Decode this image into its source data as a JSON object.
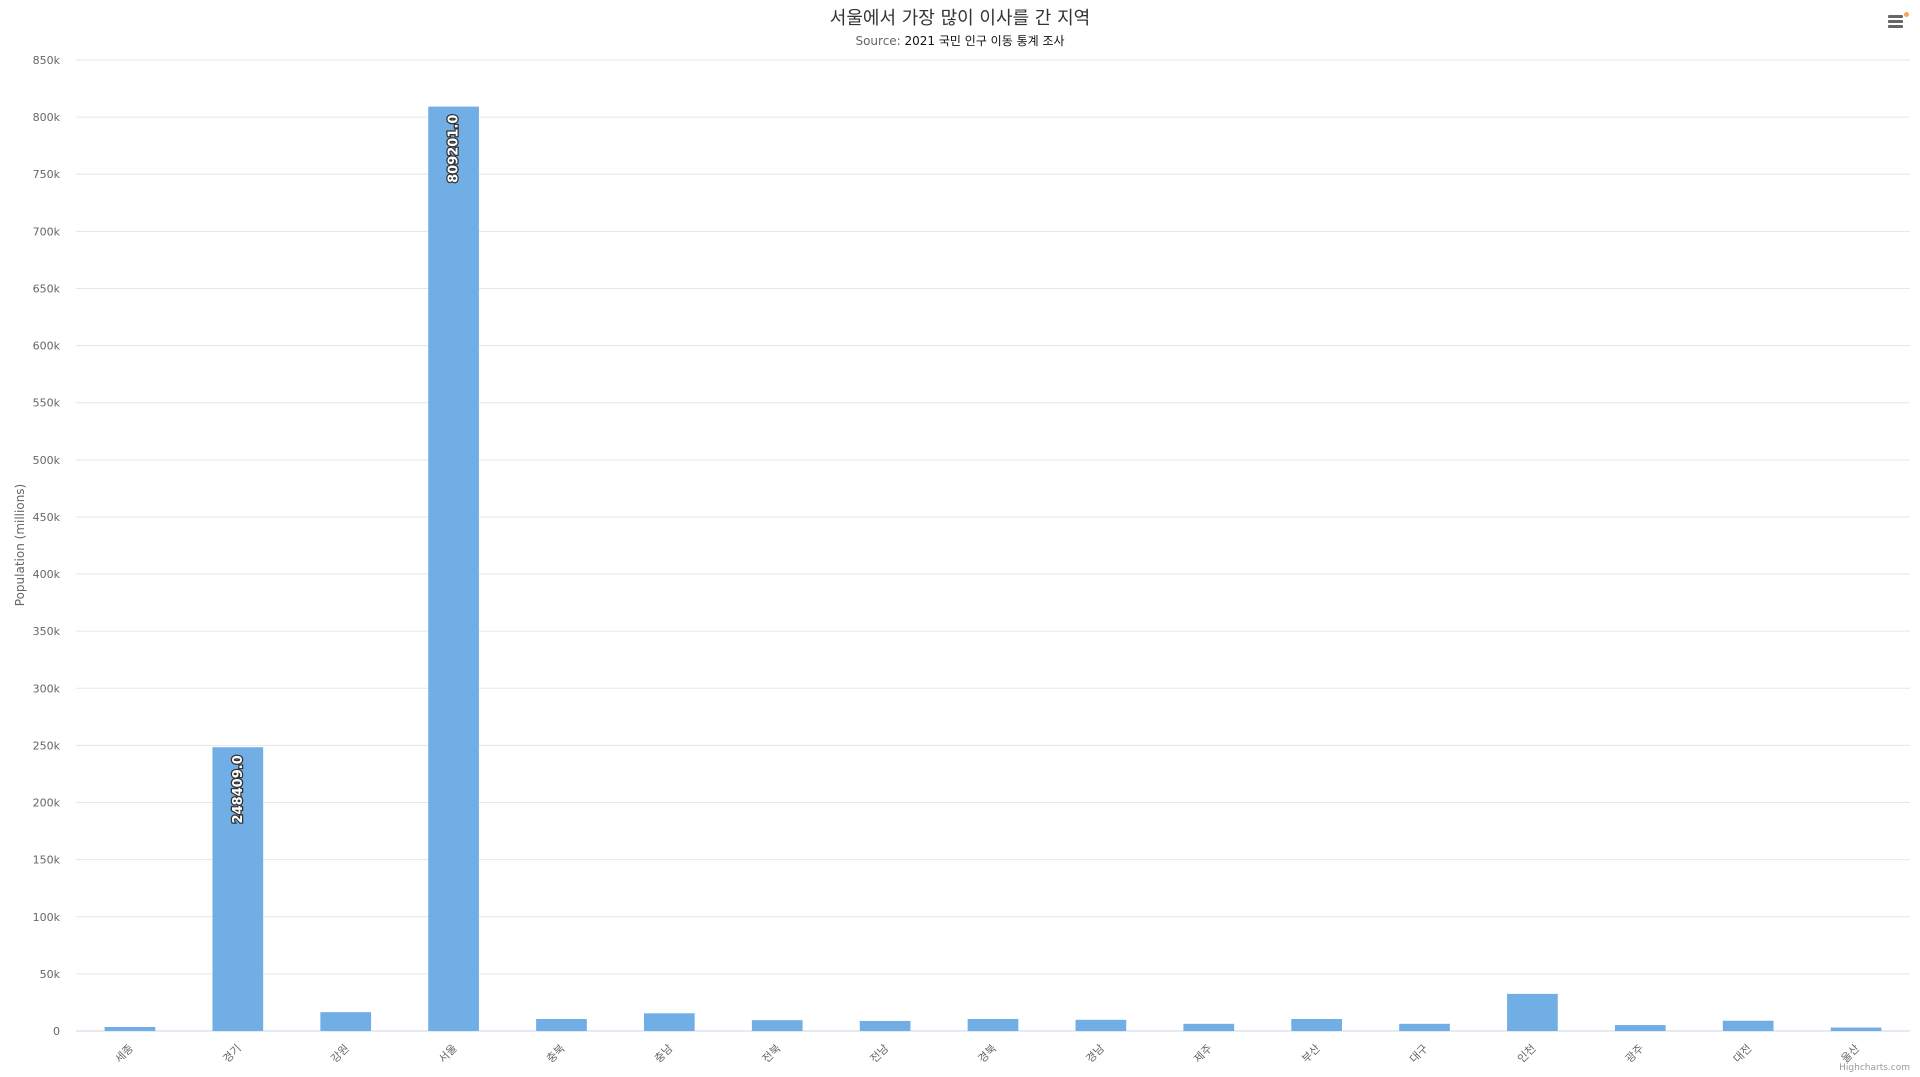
{
  "chart_data": {
    "type": "bar",
    "title": "서울에서 가장 많이 이사를 간 지역",
    "subtitle_prefix": "Source: ",
    "subtitle_source": "2021 국민 인구 이동 통계 조사",
    "xlabel": "",
    "ylabel": "Population (millions)",
    "ylim": [
      0,
      850000
    ],
    "ytick_step": 50000,
    "yticks": [
      "0",
      "50k",
      "100k",
      "150k",
      "200k",
      "250k",
      "300k",
      "350k",
      "400k",
      "450k",
      "500k",
      "550k",
      "600k",
      "650k",
      "700k",
      "750k",
      "800k",
      "850k"
    ],
    "grid": true,
    "categories": [
      "세종",
      "경기",
      "강원",
      "서울",
      "충북",
      "충남",
      "전북",
      "전남",
      "경북",
      "경남",
      "제주",
      "부산",
      "대구",
      "인천",
      "광주",
      "대전",
      "울산"
    ],
    "values": [
      3500,
      248409,
      16500,
      809201,
      10500,
      15500,
      9500,
      8800,
      10500,
      9800,
      6300,
      10500,
      6300,
      32500,
      5200,
      9000,
      3000
    ],
    "data_labels": [
      "",
      "248409.0",
      "",
      "809201.0",
      "",
      "",
      "",
      "",
      "",
      "",
      "",
      "",
      "",
      "",
      "",
      "",
      ""
    ],
    "bar_color": "#72aee6"
  },
  "credits": "Highcharts.com",
  "menu": {
    "icon": "hamburger-menu-icon",
    "badge_color": "#f7a35c"
  }
}
